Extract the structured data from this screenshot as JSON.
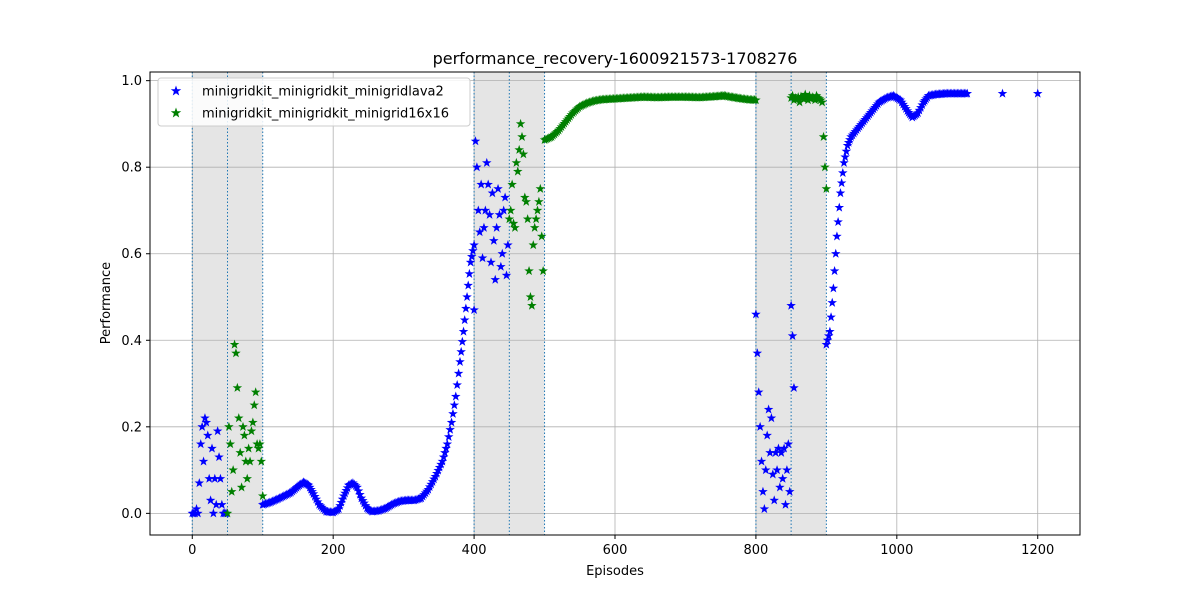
{
  "chart_data": {
    "type": "scatter",
    "title": "performance_recovery-1600921573-1708276",
    "xlabel": "Episodes",
    "ylabel": "Performance",
    "xlim": [
      -60,
      1260
    ],
    "ylim": [
      -0.05,
      1.02
    ],
    "xticks": [
      0,
      200,
      400,
      600,
      800,
      1000,
      1200
    ],
    "yticks": [
      0.0,
      0.2,
      0.4,
      0.6,
      0.8,
      1.0
    ],
    "grid": true,
    "legend_position": "top-left",
    "marker": "star",
    "shaded_regions": [
      [
        0,
        50
      ],
      [
        50,
        100
      ],
      [
        400,
        450
      ],
      [
        450,
        500
      ],
      [
        800,
        850
      ],
      [
        850,
        900
      ]
    ],
    "boundary_lines": [
      0,
      50,
      100,
      400,
      450,
      500,
      800,
      850,
      900
    ],
    "series": [
      {
        "name": "minigridkit_minigridkit_minigridlava2",
        "color": "#0000ff",
        "points": [
          [
            0,
            0
          ],
          [
            2,
            0
          ],
          [
            4,
            0
          ],
          [
            6,
            0.01
          ],
          [
            8,
            0
          ],
          [
            10,
            0.07
          ],
          [
            12,
            0.16
          ],
          [
            14,
            0.2
          ],
          [
            16,
            0.12
          ],
          [
            18,
            0.22
          ],
          [
            20,
            0.21
          ],
          [
            22,
            0.18
          ],
          [
            24,
            0.08
          ],
          [
            26,
            0.03
          ],
          [
            28,
            0.15
          ],
          [
            30,
            0
          ],
          [
            32,
            0.08
          ],
          [
            34,
            0.02
          ],
          [
            36,
            0.19
          ],
          [
            38,
            0.13
          ],
          [
            40,
            0.08
          ],
          [
            42,
            0.02
          ],
          [
            44,
            0
          ],
          [
            46,
            0
          ],
          [
            48,
            0
          ],
          [
            400,
            0.47
          ],
          [
            402,
            0.86
          ],
          [
            404,
            0.8
          ],
          [
            406,
            0.7
          ],
          [
            408,
            0.65
          ],
          [
            410,
            0.76
          ],
          [
            412,
            0.59
          ],
          [
            414,
            0.66
          ],
          [
            416,
            0.7
          ],
          [
            418,
            0.81
          ],
          [
            420,
            0.76
          ],
          [
            422,
            0.69
          ],
          [
            424,
            0.58
          ],
          [
            426,
            0.74
          ],
          [
            428,
            0.63
          ],
          [
            430,
            0.54
          ],
          [
            432,
            0.66
          ],
          [
            434,
            0.75
          ],
          [
            436,
            0.69
          ],
          [
            438,
            0.57
          ],
          [
            440,
            0.6
          ],
          [
            442,
            0.7
          ],
          [
            444,
            0.73
          ],
          [
            446,
            0.55
          ],
          [
            448,
            0.62
          ],
          [
            800,
            0.46
          ],
          [
            802,
            0.37
          ],
          [
            804,
            0.28
          ],
          [
            806,
            0.2
          ],
          [
            808,
            0.12
          ],
          [
            810,
            0.05
          ],
          [
            812,
            0.01
          ],
          [
            814,
            0.1
          ],
          [
            816,
            0.18
          ],
          [
            818,
            0.24
          ],
          [
            820,
            0.14
          ],
          [
            822,
            0.22
          ],
          [
            824,
            0.09
          ],
          [
            826,
            0.03
          ],
          [
            828,
            0.14
          ],
          [
            830,
            0.1
          ],
          [
            832,
            0.15
          ],
          [
            834,
            0.06
          ],
          [
            836,
            0.14
          ],
          [
            838,
            0.08
          ],
          [
            840,
            0.15
          ],
          [
            842,
            0.02
          ],
          [
            844,
            0.1
          ],
          [
            846,
            0.16
          ],
          [
            848,
            0.05
          ],
          [
            850,
            0.48
          ],
          [
            852,
            0.41
          ],
          [
            854,
            0.29
          ]
        ],
        "curve": [
          [
            100,
            0.02
          ],
          [
            110,
            0.025
          ],
          [
            120,
            0.032
          ],
          [
            130,
            0.04
          ],
          [
            140,
            0.048
          ],
          [
            150,
            0.062
          ],
          [
            158,
            0.072
          ],
          [
            165,
            0.065
          ],
          [
            172,
            0.045
          ],
          [
            180,
            0.02
          ],
          [
            190,
            0.004
          ],
          [
            200,
            0.002
          ],
          [
            208,
            0.01
          ],
          [
            215,
            0.04
          ],
          [
            222,
            0.065
          ],
          [
            228,
            0.07
          ],
          [
            234,
            0.06
          ],
          [
            240,
            0.035
          ],
          [
            248,
            0.012
          ],
          [
            255,
            0.004
          ],
          [
            265,
            0.006
          ],
          [
            275,
            0.012
          ],
          [
            285,
            0.022
          ],
          [
            295,
            0.028
          ],
          [
            305,
            0.03
          ],
          [
            315,
            0.03
          ],
          [
            325,
            0.035
          ],
          [
            335,
            0.055
          ],
          [
            345,
            0.085
          ],
          [
            355,
            0.12
          ],
          [
            362,
            0.16
          ],
          [
            368,
            0.21
          ],
          [
            374,
            0.27
          ],
          [
            380,
            0.35
          ],
          [
            385,
            0.42
          ],
          [
            390,
            0.5
          ],
          [
            395,
            0.58
          ],
          [
            400,
            0.62
          ],
          [
            900,
            0.39
          ],
          [
            905,
            0.42
          ],
          [
            910,
            0.52
          ],
          [
            915,
            0.64
          ],
          [
            920,
            0.74
          ],
          [
            925,
            0.81
          ],
          [
            930,
            0.85
          ],
          [
            935,
            0.87
          ],
          [
            945,
            0.89
          ],
          [
            955,
            0.91
          ],
          [
            965,
            0.93
          ],
          [
            975,
            0.95
          ],
          [
            985,
            0.96
          ],
          [
            995,
            0.965
          ],
          [
            1005,
            0.955
          ],
          [
            1015,
            0.93
          ],
          [
            1022,
            0.915
          ],
          [
            1030,
            0.925
          ],
          [
            1038,
            0.95
          ],
          [
            1045,
            0.965
          ],
          [
            1055,
            0.968
          ],
          [
            1070,
            0.97
          ],
          [
            1100,
            0.97
          ],
          [
            1150,
            0.97
          ],
          [
            1200,
            0.97
          ]
        ]
      },
      {
        "name": "minigridkit_minigridkit_minigrid16x16",
        "color": "#007f00",
        "points": [
          [
            50,
            0
          ],
          [
            52,
            0.2
          ],
          [
            54,
            0.16
          ],
          [
            56,
            0.05
          ],
          [
            58,
            0.1
          ],
          [
            60,
            0.39
          ],
          [
            62,
            0.37
          ],
          [
            64,
            0.29
          ],
          [
            66,
            0.22
          ],
          [
            68,
            0.14
          ],
          [
            70,
            0.06
          ],
          [
            72,
            0.2
          ],
          [
            74,
            0.18
          ],
          [
            76,
            0.12
          ],
          [
            78,
            0.08
          ],
          [
            80,
            0.15
          ],
          [
            82,
            0.12
          ],
          [
            84,
            0.19
          ],
          [
            86,
            0.21
          ],
          [
            88,
            0.25
          ],
          [
            90,
            0.28
          ],
          [
            92,
            0.16
          ],
          [
            94,
            0.15
          ],
          [
            96,
            0.16
          ],
          [
            98,
            0.12
          ],
          [
            450,
            0.68
          ],
          [
            452,
            0.7
          ],
          [
            454,
            0.76
          ],
          [
            456,
            0.67
          ],
          [
            458,
            0.66
          ],
          [
            460,
            0.81
          ],
          [
            462,
            0.79
          ],
          [
            464,
            0.84
          ],
          [
            466,
            0.9
          ],
          [
            468,
            0.87
          ],
          [
            470,
            0.83
          ],
          [
            472,
            0.73
          ],
          [
            474,
            0.72
          ],
          [
            476,
            0.68
          ],
          [
            478,
            0.56
          ],
          [
            480,
            0.5
          ],
          [
            482,
            0.48
          ],
          [
            484,
            0.62
          ],
          [
            486,
            0.66
          ],
          [
            488,
            0.68
          ],
          [
            490,
            0.7
          ],
          [
            492,
            0.72
          ],
          [
            494,
            0.75
          ],
          [
            496,
            0.64
          ],
          [
            498,
            0.56
          ],
          [
            850,
            0.96
          ],
          [
            852,
            0.965
          ],
          [
            854,
            0.955
          ],
          [
            856,
            0.96
          ],
          [
            858,
            0.958
          ],
          [
            860,
            0.962
          ],
          [
            862,
            0.95
          ],
          [
            864,
            0.963
          ],
          [
            866,
            0.96
          ],
          [
            868,
            0.957
          ],
          [
            870,
            0.968
          ],
          [
            872,
            0.96
          ],
          [
            874,
            0.955
          ],
          [
            876,
            0.965
          ],
          [
            878,
            0.958
          ],
          [
            880,
            0.962
          ],
          [
            882,
            0.96
          ],
          [
            884,
            0.955
          ],
          [
            886,
            0.965
          ],
          [
            888,
            0.96
          ],
          [
            890,
            0.958
          ],
          [
            892,
            0.955
          ],
          [
            894,
            0.95
          ],
          [
            896,
            0.87
          ],
          [
            898,
            0.8
          ],
          [
            900,
            0.75
          ]
        ],
        "curve": [
          [
            100,
            0.04
          ],
          [
            500,
            0.863
          ],
          [
            510,
            0.87
          ],
          [
            520,
            0.885
          ],
          [
            530,
            0.905
          ],
          [
            540,
            0.925
          ],
          [
            550,
            0.94
          ],
          [
            560,
            0.948
          ],
          [
            570,
            0.953
          ],
          [
            580,
            0.956
          ],
          [
            600,
            0.958
          ],
          [
            620,
            0.96
          ],
          [
            640,
            0.962
          ],
          [
            660,
            0.961
          ],
          [
            680,
            0.962
          ],
          [
            700,
            0.962
          ],
          [
            720,
            0.961
          ],
          [
            740,
            0.963
          ],
          [
            755,
            0.965
          ],
          [
            765,
            0.962
          ],
          [
            780,
            0.958
          ],
          [
            790,
            0.956
          ],
          [
            800,
            0.955
          ]
        ]
      }
    ]
  }
}
